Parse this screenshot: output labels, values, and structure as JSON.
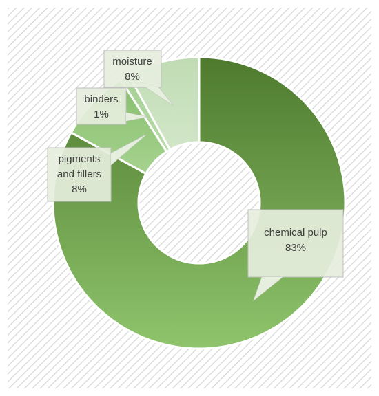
{
  "chart_data": {
    "type": "pie",
    "title": "",
    "slices": [
      {
        "label": "chemical pulp",
        "value": 83,
        "value_label": "83%",
        "color": "#558b33"
      },
      {
        "label": "pigments and fillers",
        "value": 8,
        "value_label": "8%",
        "color": "#8cc47a"
      },
      {
        "label": "binders",
        "value": 1,
        "value_label": "1%",
        "color": "#a9d39c"
      },
      {
        "label": "moisture",
        "value": 8,
        "value_label": "8%",
        "color": "#c3dfb8"
      }
    ],
    "donut": true,
    "legend": "none",
    "data_labels": "callouts"
  },
  "callouts": [
    {
      "lines": [
        "chemical pulp",
        "83%"
      ]
    },
    {
      "lines": [
        "pigments",
        "and fillers",
        "8%"
      ]
    },
    {
      "lines": [
        "binders",
        "1%"
      ]
    },
    {
      "lines": [
        "moisture",
        "8%"
      ]
    }
  ]
}
